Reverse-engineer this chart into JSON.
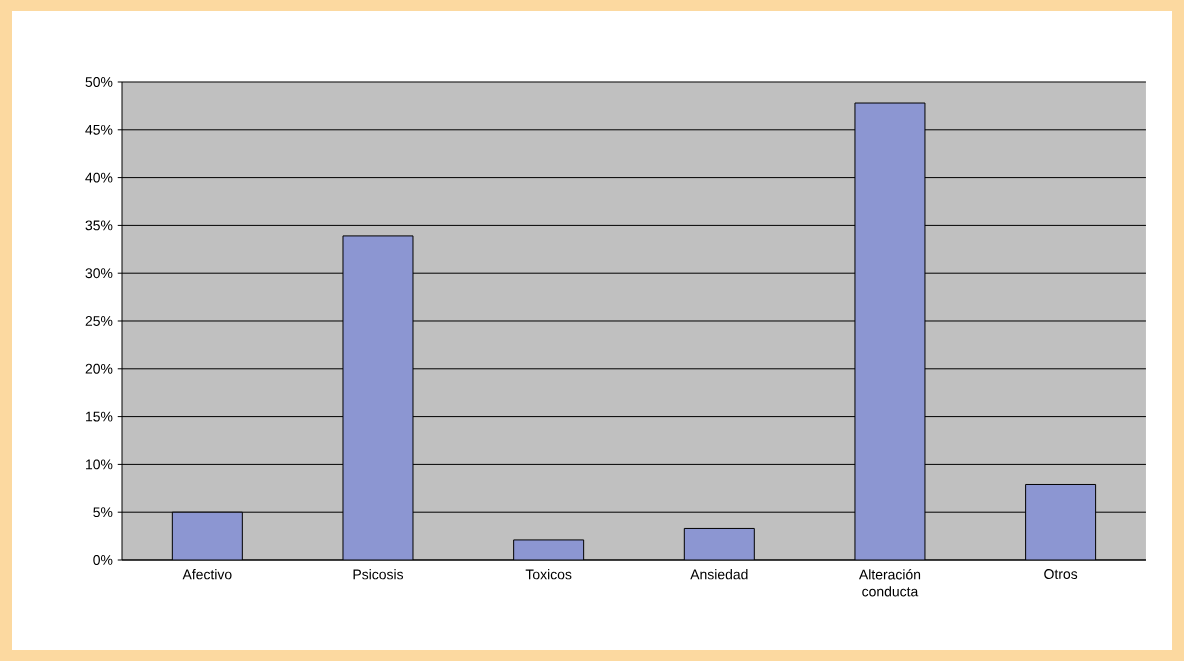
{
  "chart_data": {
    "type": "bar",
    "categories": [
      "Afectivo",
      "Psicosis",
      "Toxicos",
      "Ansiedad",
      "Alteración conducta",
      "Otros"
    ],
    "values": [
      5.0,
      33.9,
      2.1,
      3.3,
      47.8,
      7.9
    ],
    "color": "#8c96d2",
    "ylim": [
      0,
      50
    ],
    "yticks": [
      {
        "value": 0,
        "label": "0%"
      },
      {
        "value": 5,
        "label": "5%"
      },
      {
        "value": 10,
        "label": "10%"
      },
      {
        "value": 15,
        "label": "15%"
      },
      {
        "value": 20,
        "label": "20%"
      },
      {
        "value": 25,
        "label": "25%"
      },
      {
        "value": 30,
        "label": "30%"
      },
      {
        "value": 35,
        "label": "35%"
      },
      {
        "value": 40,
        "label": "40%"
      },
      {
        "value": 45,
        "label": "45%"
      },
      {
        "value": 50,
        "label": "50%"
      }
    ],
    "grid": "y"
  }
}
